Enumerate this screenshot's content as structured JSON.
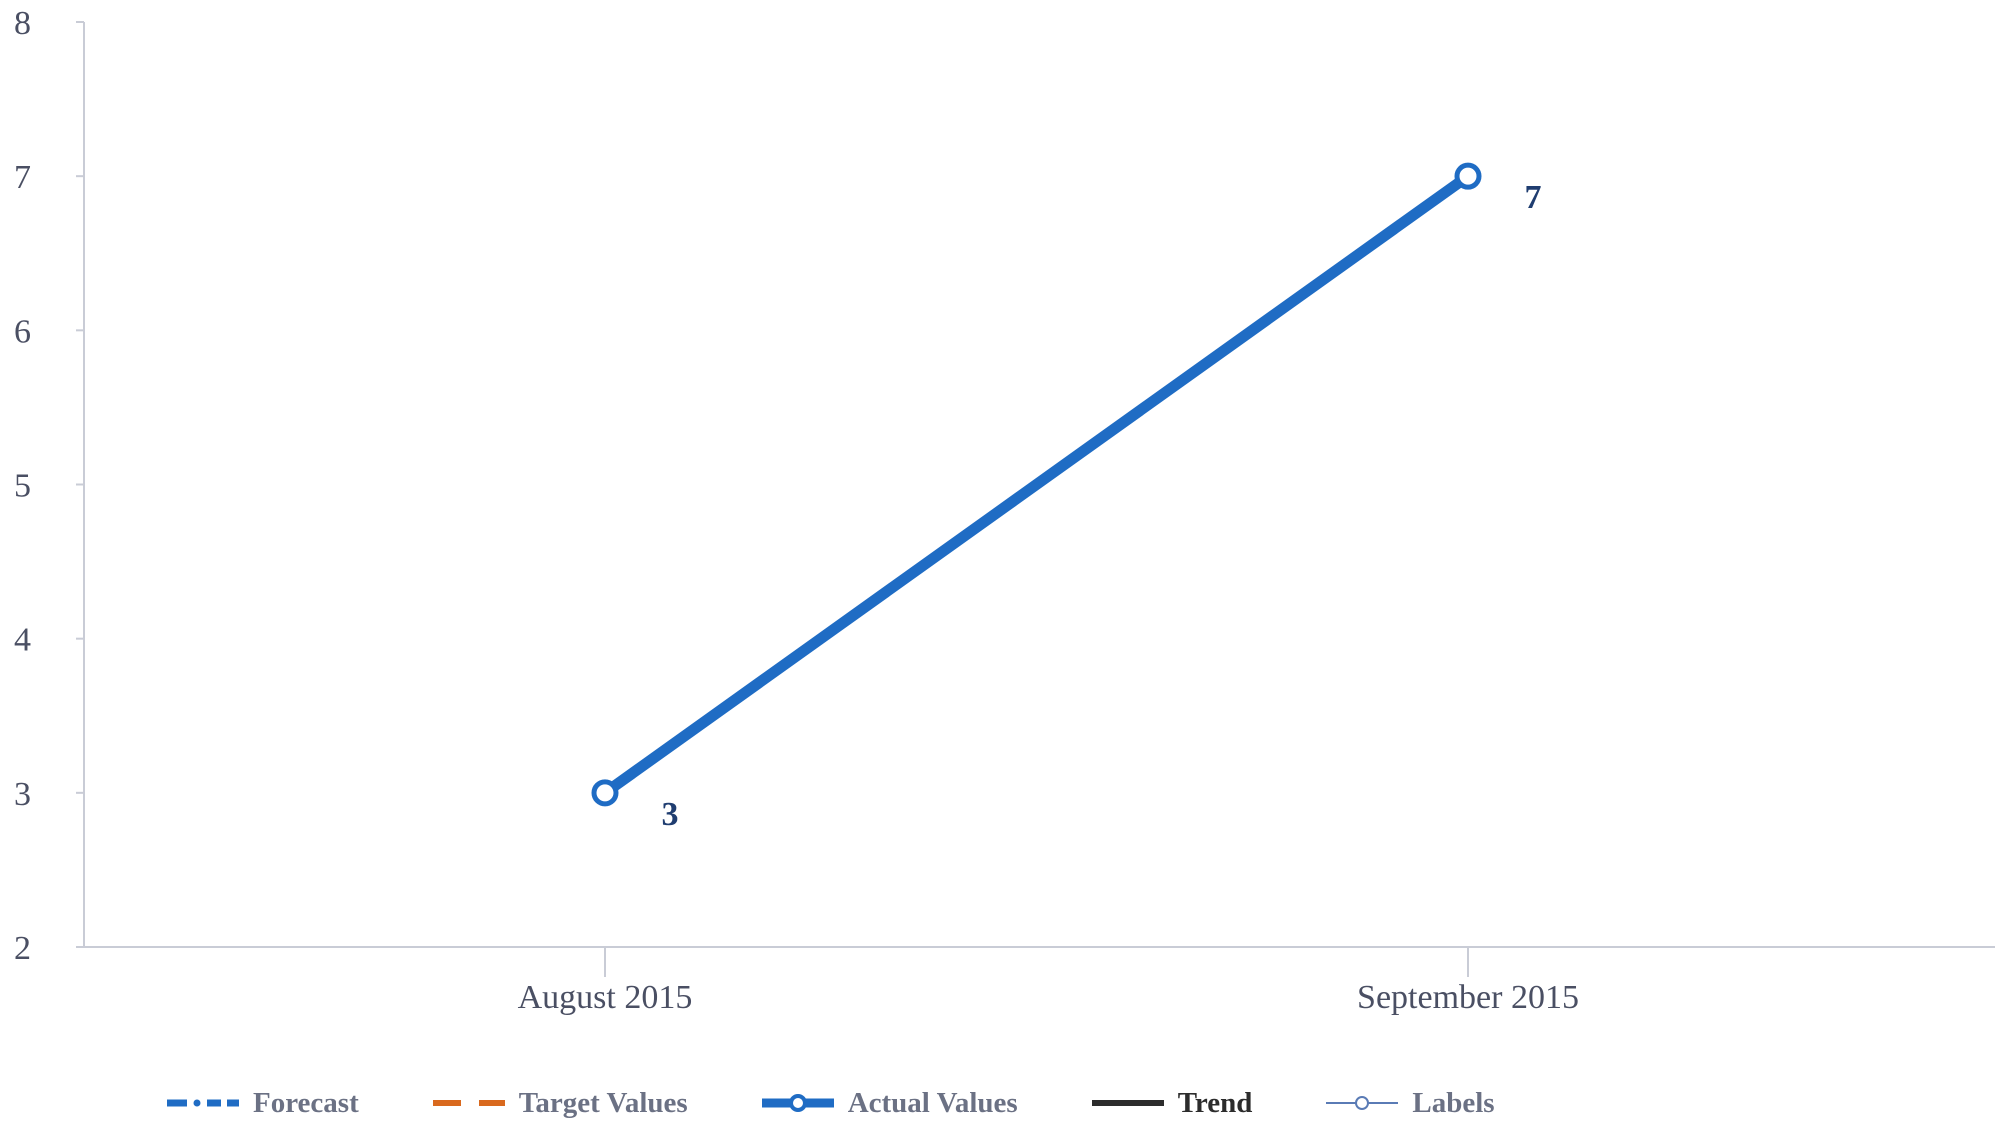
{
  "chart_data": {
    "type": "line",
    "categories": [
      "August 2015",
      "September 2015"
    ],
    "series": [
      {
        "name": "Actual Values",
        "values": [
          3,
          7
        ],
        "color": "#1f6cc4"
      }
    ],
    "data_labels": [
      "3",
      "7"
    ],
    "ylim": [
      2,
      8
    ],
    "yticks": [
      2,
      3,
      4,
      5,
      6,
      7,
      8
    ],
    "xlabel": "",
    "ylabel": "",
    "grid": false,
    "legend_position": "bottom"
  },
  "legend": [
    {
      "label": "Forecast",
      "icon": "dash-dot-line-icon",
      "color": "#1f6cc4"
    },
    {
      "label": "Target Values",
      "icon": "dashed-line-icon",
      "color": "#d9691e"
    },
    {
      "label": "Actual Values",
      "icon": "line-with-circle-marker-icon",
      "color": "#1f6cc4"
    },
    {
      "label": "Trend",
      "icon": "solid-line-icon",
      "color": "#2c2c2c"
    },
    {
      "label": "Labels",
      "icon": "thin-line-with-circle-marker-icon",
      "color": "#5a7bb5"
    }
  ]
}
